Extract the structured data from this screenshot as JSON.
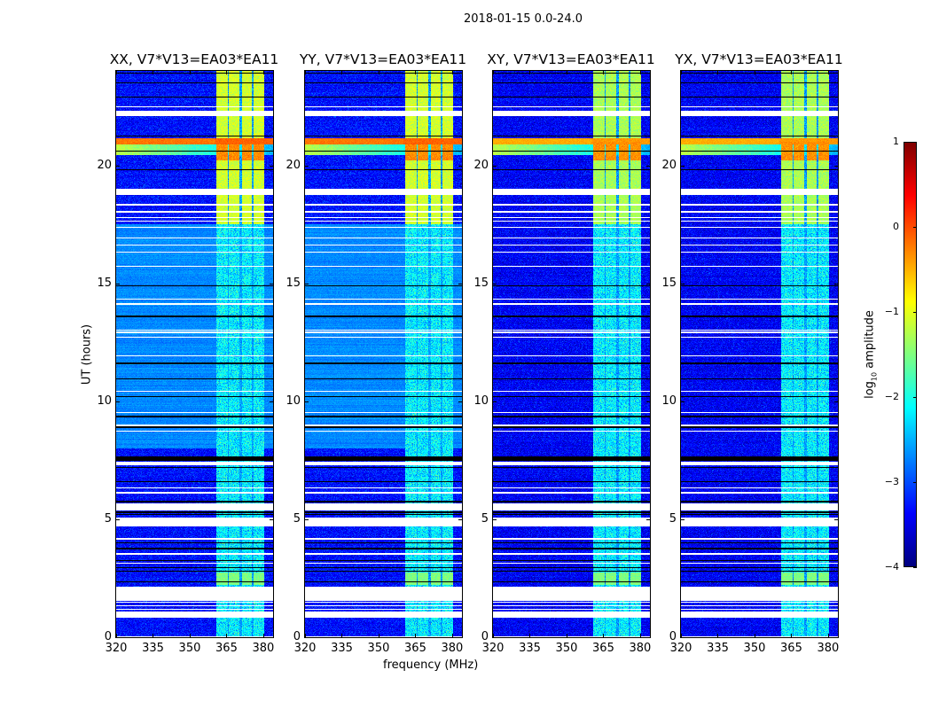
{
  "chart_data": {
    "type": "heatmap",
    "title": "2018-01-15 0.0-24.0",
    "xlabel": "frequency (MHz)",
    "ylabel": "UT (hours)",
    "xlim": [
      320,
      384
    ],
    "ylim": [
      0,
      24
    ],
    "xticks": [
      320,
      335,
      350,
      365,
      380
    ],
    "xtick_labels": [
      "320",
      "335",
      "350",
      "365",
      "380"
    ],
    "yticks": [
      0,
      5,
      10,
      15,
      20
    ],
    "ytick_labels": [
      "0",
      "5",
      "10",
      "15",
      "20"
    ],
    "colormap": "jet",
    "colorbar": {
      "label_main": "log",
      "label_sub": "10",
      "label_rest": " amplitude",
      "range": [
        -4,
        1
      ],
      "ticks": [
        1,
        0,
        -1,
        -2,
        -3,
        -4
      ],
      "tick_labels": [
        "1",
        "0",
        "−1",
        "−2",
        "−3",
        "−4"
      ]
    },
    "panels": [
      {
        "title": "XX, V7*V13=EA03*EA11",
        "background_log_amp": -3.3,
        "quiet_period_log_amp": -2.7,
        "rfi_strength": 1.0
      },
      {
        "title": "YY, V7*V13=EA03*EA11",
        "background_log_amp": -3.3,
        "quiet_period_log_amp": -2.7,
        "rfi_strength": 1.0
      },
      {
        "title": "XY, V7*V13=EA03*EA11",
        "background_log_amp": -3.4,
        "quiet_period_log_amp": null,
        "rfi_strength": 0.85
      },
      {
        "title": "YX, V7*V13=EA03*EA11",
        "background_log_amp": -3.4,
        "quiet_period_log_amp": null,
        "rfi_strength": 0.85
      }
    ],
    "quiet_period_hours": [
      8.0,
      17.5
    ],
    "rfi_channels_mhz": [
      [
        360.7,
        365.5
      ],
      [
        365.8,
        370.2
      ],
      [
        371.3,
        375.3
      ],
      [
        376.0,
        380.4
      ]
    ],
    "rfi_periods": [
      {
        "hours": [
          17.5,
          24.0
        ],
        "log_amp": -1.1
      },
      {
        "hours": [
          20.2,
          21.0
        ],
        "log_amp": -0.2
      },
      {
        "hours": [
          2.2,
          2.75
        ],
        "log_amp": -1.5
      }
    ],
    "broadband_burst": {
      "hours": [
        20.9,
        21.15
      ],
      "log_amp": -0.1
    },
    "flagged_hours": [
      [
        0.0,
        0.03
      ],
      [
        0.83,
        1.08
      ],
      [
        1.15,
        1.2
      ],
      [
        1.3,
        1.35
      ],
      [
        1.45,
        1.5
      ],
      [
        1.55,
        2.15
      ],
      [
        3.1,
        3.15
      ],
      [
        3.5,
        3.55
      ],
      [
        4.15,
        4.2
      ],
      [
        4.69,
        5.06
      ],
      [
        5.36,
        5.66
      ],
      [
        6.1,
        6.15
      ],
      [
        6.3,
        6.35
      ],
      [
        7.3,
        7.45
      ],
      [
        8.7,
        8.75
      ],
      [
        8.95,
        9.0
      ],
      [
        9.5,
        9.55
      ],
      [
        10.4,
        10.45
      ],
      [
        11.9,
        11.95
      ],
      [
        12.7,
        12.75
      ],
      [
        12.9,
        12.95
      ],
      [
        13.0,
        13.05
      ],
      [
        14.1,
        14.15
      ],
      [
        14.3,
        14.35
      ],
      [
        15.7,
        15.75
      ],
      [
        16.3,
        16.35
      ],
      [
        16.6,
        16.65
      ],
      [
        16.9,
        16.95
      ],
      [
        17.35,
        17.4
      ],
      [
        17.6,
        17.65
      ],
      [
        17.75,
        17.8
      ],
      [
        18.0,
        18.05
      ],
      [
        18.3,
        18.35
      ],
      [
        18.75,
        19.0
      ],
      [
        22.1,
        22.3
      ],
      [
        22.45,
        22.5
      ]
    ],
    "dropout_hours": [
      2.35,
      2.8,
      2.95,
      3.25,
      3.75,
      4.0,
      5.2,
      5.3,
      5.75,
      6.6,
      7.2,
      7.5,
      7.55,
      7.6,
      7.65,
      8.9,
      9.35,
      10.2,
      10.95,
      11.6,
      13.6,
      14.9,
      19.8,
      20.6,
      21.25,
      22.9,
      23.5,
      23.9
    ]
  }
}
